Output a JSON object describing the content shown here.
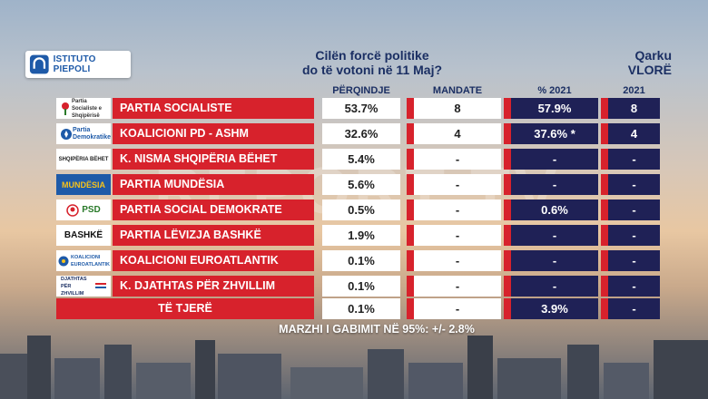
{
  "logo": {
    "text": "ISTITUTO PIEPOLI"
  },
  "question": {
    "line1": "Cilën forcë politike",
    "line2": "do të votoni në 11 Maj?"
  },
  "region": {
    "line1": "Qarku",
    "line2": "VLORË"
  },
  "headers": {
    "percent": "PËRQINDJE",
    "mandates": "MANDATE",
    "pct2021": "% 2021",
    "y2021": "2021"
  },
  "rows": [
    {
      "party": "PARTIA SOCIALISTE",
      "percent": "53.7%",
      "mandates": "8",
      "pct2021": "57.9%",
      "m2021": "8",
      "logo_text": "Partia Socialiste e Shqipërisë"
    },
    {
      "party": "KOALICIONI PD - ASHM",
      "percent": "32.6%",
      "mandates": "4",
      "pct2021": "37.6% *",
      "m2021": "4",
      "logo_text": "Partia Demokratike"
    },
    {
      "party": "K. NISMA SHQIPËRIA BËHET",
      "percent": "5.4%",
      "mandates": "-",
      "pct2021": "-",
      "m2021": "-",
      "logo_text": "SHQIPËRIA BËHET"
    },
    {
      "party": "PARTIA MUNDËSIA",
      "percent": "5.6%",
      "mandates": "-",
      "pct2021": "-",
      "m2021": "-",
      "logo_text": "MUNDËSIA"
    },
    {
      "party": "PARTIA SOCIAL DEMOKRATE",
      "percent": "0.5%",
      "mandates": "-",
      "pct2021": "0.6%",
      "m2021": "-",
      "logo_text": "PSD"
    },
    {
      "party": "PARTIA LËVIZJA BASHKË",
      "percent": "1.9%",
      "mandates": "-",
      "pct2021": "-",
      "m2021": "-",
      "logo_text": "BASHKË"
    },
    {
      "party": "KOALICIONI EUROATLANTIK",
      "percent": "0.1%",
      "mandates": "-",
      "pct2021": "-",
      "m2021": "-",
      "logo_text": "KOALICIONI EUROATLANTIK"
    },
    {
      "party": "K. DJATHTAS PËR ZHVILLIM",
      "percent": "0.1%",
      "mandates": "-",
      "pct2021": "-",
      "m2021": "-",
      "logo_text": "DJATHTAS PËR ZHVILLIM"
    }
  ],
  "others": {
    "label": "TË TJERË",
    "percent": "0.1%",
    "mandates": "-",
    "pct2021": "3.9%",
    "m2021": "-"
  },
  "footer": {
    "margin": "MARZHI I GABIMIT NË 95%: +/- 2.8%"
  },
  "watermark": {
    "text": "REPORT TV"
  },
  "colors": {
    "red": "#d7222c",
    "navy": "#1f2156",
    "title": "#1b2f63"
  }
}
